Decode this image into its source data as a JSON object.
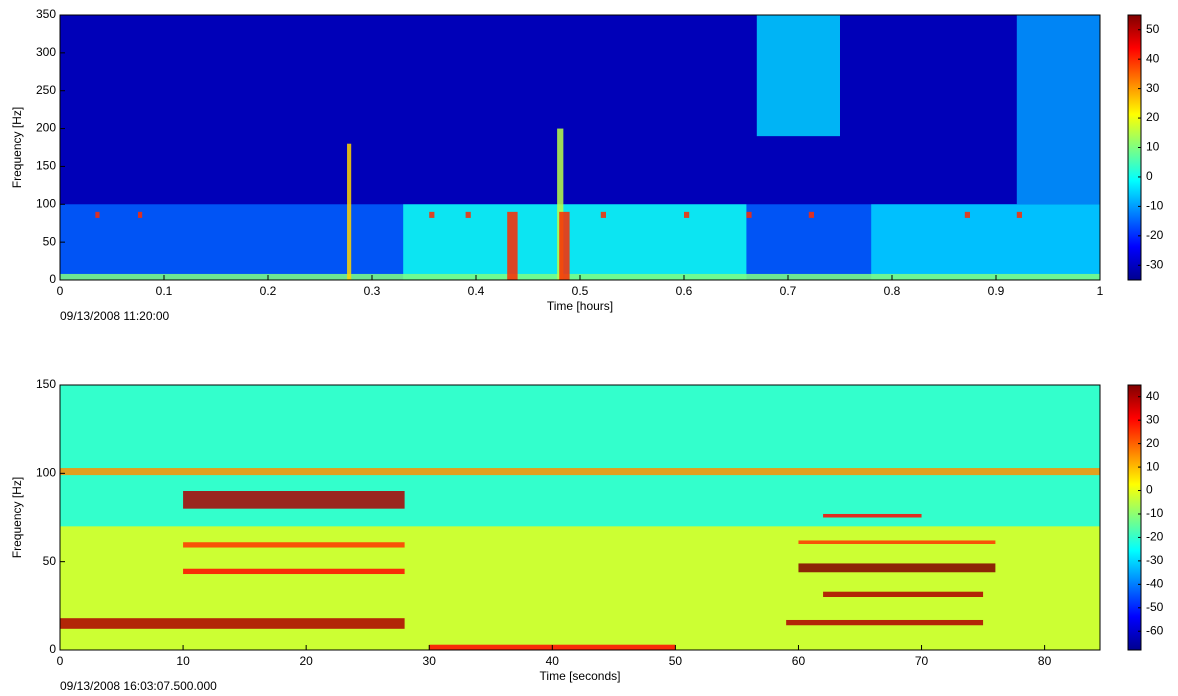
{
  "chart_data": [
    {
      "type": "spectrogram",
      "xlabel": "Time [hours]",
      "ylabel": "Frequency [Hz]",
      "timestamp": "09/13/2008 11:20:00",
      "xlim": [
        0,
        1
      ],
      "xticks": [
        0,
        0.1,
        0.2,
        0.3,
        0.4,
        0.5,
        0.6,
        0.7,
        0.8,
        0.9,
        1
      ],
      "ylim": [
        0,
        350
      ],
      "yticks": [
        0,
        50,
        100,
        150,
        200,
        250,
        300,
        350
      ],
      "clim": [
        -35,
        55
      ],
      "cticks": [
        -30,
        -20,
        -10,
        0,
        10,
        20,
        30,
        40,
        50
      ],
      "background": -30,
      "bands": [
        {
          "x": [
            0,
            1
          ],
          "y": [
            0,
            100
          ],
          "value": -15
        },
        {
          "x": [
            0.33,
            0.66
          ],
          "y": [
            0,
            100
          ],
          "value": 0
        },
        {
          "x": [
            0.78,
            1
          ],
          "y": [
            0,
            100
          ],
          "value": -5
        },
        {
          "x": [
            0.67,
            0.75
          ],
          "y": [
            190,
            350
          ],
          "value": -5
        },
        {
          "x": [
            0.92,
            1
          ],
          "y": [
            100,
            350
          ],
          "value": -10
        },
        {
          "x": [
            0,
            1
          ],
          "y": [
            0,
            8
          ],
          "value": 10
        },
        {
          "x": [
            0.276,
            0.28
          ],
          "y": [
            0,
            180
          ],
          "value": 25
        },
        {
          "x": [
            0.478,
            0.484
          ],
          "y": [
            0,
            200
          ],
          "value": 15
        },
        {
          "x": [
            0.43,
            0.44
          ],
          "y": [
            0,
            90
          ],
          "value": 40
        },
        {
          "x": [
            0.48,
            0.49
          ],
          "y": [
            0,
            90
          ],
          "value": 40
        },
        {
          "x": [
            0.034,
            0.038
          ],
          "y": [
            82,
            90
          ],
          "value": 40
        },
        {
          "x": [
            0.075,
            0.079
          ],
          "y": [
            82,
            90
          ],
          "value": 40
        },
        {
          "x": [
            0.355,
            0.36
          ],
          "y": [
            82,
            90
          ],
          "value": 40
        },
        {
          "x": [
            0.39,
            0.395
          ],
          "y": [
            82,
            90
          ],
          "value": 40
        },
        {
          "x": [
            0.52,
            0.525
          ],
          "y": [
            82,
            90
          ],
          "value": 40
        },
        {
          "x": [
            0.6,
            0.605
          ],
          "y": [
            82,
            90
          ],
          "value": 40
        },
        {
          "x": [
            0.66,
            0.665
          ],
          "y": [
            82,
            90
          ],
          "value": 40
        },
        {
          "x": [
            0.72,
            0.725
          ],
          "y": [
            82,
            90
          ],
          "value": 40
        },
        {
          "x": [
            0.87,
            0.875
          ],
          "y": [
            82,
            90
          ],
          "value": 40
        },
        {
          "x": [
            0.92,
            0.925
          ],
          "y": [
            82,
            90
          ],
          "value": 40
        }
      ]
    },
    {
      "type": "spectrogram",
      "xlabel": "Time [seconds]",
      "ylabel": "Frequency [Hz]",
      "timestamp": "09/13/2008 16:03:07.500.000",
      "xlim": [
        0,
        84.5
      ],
      "xticks": [
        0,
        10,
        20,
        30,
        40,
        50,
        60,
        70,
        80
      ],
      "ylim": [
        0,
        150
      ],
      "yticks": [
        0,
        50,
        100,
        150
      ],
      "clim": [
        -68,
        45
      ],
      "cticks": [
        -60,
        -50,
        -40,
        -30,
        -20,
        -10,
        0,
        10,
        20,
        30,
        40
      ],
      "background": -20,
      "bands": [
        {
          "x": [
            0,
            84.5
          ],
          "y": [
            0,
            70
          ],
          "value": 0
        },
        {
          "x": [
            0,
            84.5
          ],
          "y": [
            99,
            103
          ],
          "value": 15
        },
        {
          "x": [
            10,
            28
          ],
          "y": [
            80,
            90
          ],
          "value": 40
        },
        {
          "x": [
            0,
            28
          ],
          "y": [
            12,
            18
          ],
          "value": 40
        },
        {
          "x": [
            10,
            28
          ],
          "y": [
            43,
            46
          ],
          "value": 30
        },
        {
          "x": [
            10,
            28
          ],
          "y": [
            58,
            61
          ],
          "value": 25
        },
        {
          "x": [
            60,
            76
          ],
          "y": [
            44,
            49
          ],
          "value": 45
        },
        {
          "x": [
            62,
            75
          ],
          "y": [
            30,
            33
          ],
          "value": 40
        },
        {
          "x": [
            59,
            75
          ],
          "y": [
            14,
            17
          ],
          "value": 40
        },
        {
          "x": [
            62,
            70
          ],
          "y": [
            75,
            77
          ],
          "value": 30
        },
        {
          "x": [
            60,
            76
          ],
          "y": [
            60,
            62
          ],
          "value": 25
        },
        {
          "x": [
            30,
            50
          ],
          "y": [
            0,
            3
          ],
          "value": 30
        }
      ]
    }
  ]
}
